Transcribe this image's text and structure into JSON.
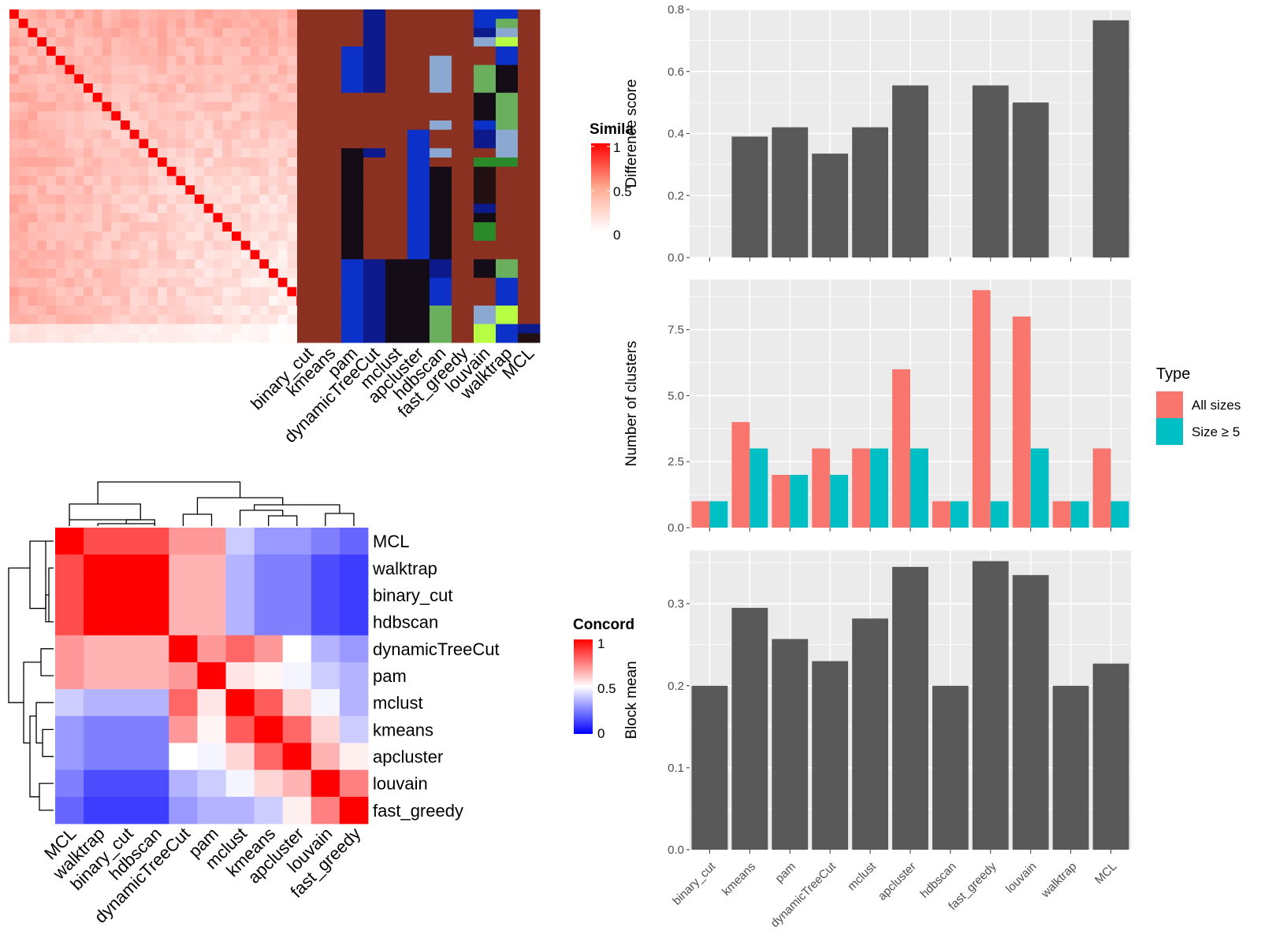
{
  "colors": {
    "panel_bg": "#ebebeb",
    "grid": "#ffffff",
    "bar": "#595959",
    "all_sizes": "#f8766d",
    "size_ge5": "#00bfc4",
    "sim_high": "#ff0000",
    "conc_low": "#0000ff"
  },
  "chart_data": [
    {
      "id": "similarity_heatmap",
      "type": "heatmap",
      "matrix_size": 36,
      "diagonal_value": 1,
      "legend": {
        "title": "Simila",
        "ticks": [
          "1",
          "0.5",
          "0"
        ]
      }
    },
    {
      "id": "cluster_assignment_heatmap",
      "type": "heatmap",
      "columns": [
        "binary_cut",
        "kmeans",
        "pam",
        "dynamicTreeCut",
        "mclust",
        "apcluster",
        "hdbscan",
        "fast_greedy",
        "louvain",
        "walktrap",
        "MCL"
      ],
      "rows": 36,
      "cluster_colors": [
        "#8b3121",
        "#0d1a8c",
        "#0b31c8",
        "#140c16",
        "#8aa8d0",
        "#6aaf5e",
        "#b8ff44",
        "#2a8a2a",
        "#231012"
      ],
      "assignments": [
        [
          0,
          0,
          0,
          1,
          0,
          0,
          0,
          0,
          2,
          2,
          0
        ],
        [
          0,
          0,
          0,
          1,
          0,
          0,
          0,
          0,
          2,
          5,
          0
        ],
        [
          0,
          0,
          0,
          1,
          0,
          0,
          0,
          0,
          1,
          4,
          0
        ],
        [
          0,
          0,
          0,
          1,
          0,
          0,
          0,
          0,
          4,
          6,
          0
        ],
        [
          0,
          0,
          2,
          1,
          0,
          0,
          0,
          0,
          0,
          2,
          0
        ],
        [
          0,
          0,
          2,
          1,
          0,
          0,
          4,
          0,
          0,
          2,
          0
        ],
        [
          0,
          0,
          2,
          1,
          0,
          0,
          4,
          0,
          5,
          3,
          0
        ],
        [
          0,
          0,
          2,
          1,
          0,
          0,
          4,
          0,
          5,
          3,
          0
        ],
        [
          0,
          0,
          2,
          1,
          0,
          0,
          4,
          0,
          5,
          3,
          0
        ],
        [
          0,
          0,
          0,
          0,
          0,
          0,
          0,
          0,
          3,
          5,
          0
        ],
        [
          0,
          0,
          0,
          0,
          0,
          0,
          0,
          0,
          3,
          5,
          0
        ],
        [
          0,
          0,
          0,
          0,
          0,
          0,
          0,
          0,
          3,
          5,
          0
        ],
        [
          0,
          0,
          0,
          0,
          0,
          0,
          4,
          0,
          2,
          5,
          0
        ],
        [
          0,
          0,
          0,
          0,
          0,
          2,
          0,
          0,
          1,
          4,
          0
        ],
        [
          0,
          0,
          0,
          0,
          0,
          2,
          0,
          0,
          1,
          4,
          0
        ],
        [
          0,
          0,
          3,
          1,
          0,
          2,
          4,
          0,
          0,
          4,
          0
        ],
        [
          0,
          0,
          3,
          0,
          0,
          2,
          0,
          0,
          7,
          7,
          0
        ],
        [
          0,
          0,
          3,
          0,
          0,
          2,
          3,
          0,
          8,
          0,
          0
        ],
        [
          0,
          0,
          3,
          0,
          0,
          2,
          3,
          0,
          8,
          0,
          0
        ],
        [
          0,
          0,
          3,
          0,
          0,
          2,
          3,
          0,
          8,
          0,
          0
        ],
        [
          0,
          0,
          3,
          0,
          0,
          2,
          3,
          0,
          8,
          0,
          0
        ],
        [
          0,
          0,
          3,
          0,
          0,
          2,
          3,
          0,
          1,
          0,
          0
        ],
        [
          0,
          0,
          3,
          0,
          0,
          2,
          3,
          0,
          3,
          0,
          0
        ],
        [
          0,
          0,
          3,
          0,
          0,
          2,
          3,
          0,
          7,
          0,
          0
        ],
        [
          0,
          0,
          3,
          0,
          0,
          2,
          3,
          0,
          7,
          0,
          0
        ],
        [
          0,
          0,
          3,
          0,
          0,
          2,
          3,
          0,
          0,
          0,
          0
        ],
        [
          0,
          0,
          3,
          0,
          0,
          2,
          3,
          0,
          0,
          0,
          0
        ],
        [
          0,
          0,
          2,
          1,
          3,
          3,
          1,
          0,
          3,
          5,
          0
        ],
        [
          0,
          0,
          2,
          1,
          3,
          3,
          1,
          0,
          3,
          5,
          0
        ],
        [
          0,
          0,
          2,
          1,
          3,
          3,
          2,
          0,
          0,
          2,
          0
        ],
        [
          0,
          0,
          2,
          1,
          3,
          3,
          2,
          0,
          0,
          2,
          0
        ],
        [
          0,
          0,
          2,
          1,
          3,
          3,
          2,
          0,
          0,
          2,
          0
        ],
        [
          0,
          0,
          2,
          1,
          3,
          3,
          5,
          0,
          4,
          6,
          0
        ],
        [
          0,
          0,
          2,
          1,
          3,
          3,
          5,
          0,
          4,
          6,
          0
        ],
        [
          0,
          0,
          2,
          1,
          3,
          3,
          5,
          0,
          6,
          2,
          1
        ],
        [
          0,
          0,
          2,
          1,
          3,
          3,
          5,
          0,
          6,
          2,
          8
        ]
      ]
    },
    {
      "id": "concordance_heatmap",
      "type": "heatmap",
      "labels": [
        "MCL",
        "walktrap",
        "binary_cut",
        "hdbscan",
        "dynamicTreeCut",
        "pam",
        "mclust",
        "kmeans",
        "apcluster",
        "louvain",
        "fast_greedy"
      ],
      "values": [
        [
          1,
          0.85,
          0.85,
          0.85,
          0.7,
          0.7,
          0.4,
          0.3,
          0.3,
          0.25,
          0.2
        ],
        [
          0.85,
          1,
          1,
          1,
          0.65,
          0.65,
          0.35,
          0.25,
          0.25,
          0.15,
          0.12
        ],
        [
          0.85,
          1,
          1,
          1,
          0.65,
          0.65,
          0.35,
          0.25,
          0.25,
          0.15,
          0.12
        ],
        [
          0.85,
          1,
          1,
          1,
          0.65,
          0.65,
          0.35,
          0.25,
          0.25,
          0.15,
          0.12
        ],
        [
          0.7,
          0.65,
          0.65,
          0.65,
          1,
          0.7,
          0.8,
          0.7,
          0.5,
          0.35,
          0.3
        ],
        [
          0.7,
          0.65,
          0.65,
          0.65,
          0.7,
          1,
          0.55,
          0.52,
          0.48,
          0.4,
          0.35
        ],
        [
          0.4,
          0.35,
          0.35,
          0.35,
          0.8,
          0.55,
          1,
          0.82,
          0.58,
          0.48,
          0.35
        ],
        [
          0.3,
          0.25,
          0.25,
          0.25,
          0.7,
          0.52,
          0.82,
          1,
          0.8,
          0.58,
          0.4
        ],
        [
          0.3,
          0.25,
          0.25,
          0.25,
          0.5,
          0.48,
          0.58,
          0.8,
          1,
          0.65,
          0.53
        ],
        [
          0.25,
          0.15,
          0.15,
          0.15,
          0.35,
          0.4,
          0.48,
          0.58,
          0.65,
          1,
          0.75
        ],
        [
          0.2,
          0.12,
          0.12,
          0.12,
          0.3,
          0.35,
          0.35,
          0.4,
          0.53,
          0.75,
          1
        ]
      ],
      "legend": {
        "title": "Concord",
        "ticks": [
          "1",
          "0.5",
          "0"
        ]
      }
    },
    {
      "id": "difference_score",
      "type": "bar",
      "categories": [
        "binary_cut",
        "kmeans",
        "pam",
        "dynamicTreeCut",
        "mclust",
        "apcluster",
        "hdbscan",
        "fast_greedy",
        "louvain",
        "walktrap",
        "MCL"
      ],
      "values": [
        0,
        0.39,
        0.42,
        0.335,
        0.42,
        0.555,
        0,
        0.555,
        0.5,
        0,
        0.765
      ],
      "ylabel": "Difference score",
      "ylim": [
        0,
        0.8
      ],
      "yticks": [
        "0.0",
        "0.2",
        "0.4",
        "0.6",
        "0.8"
      ]
    },
    {
      "id": "number_of_clusters",
      "type": "bar",
      "categories": [
        "binary_cut",
        "kmeans",
        "pam",
        "dynamicTreeCut",
        "mclust",
        "apcluster",
        "hdbscan",
        "fast_greedy",
        "louvain",
        "walktrap",
        "MCL"
      ],
      "series": [
        {
          "name": "All sizes",
          "values": [
            1,
            4,
            2,
            3,
            3,
            6,
            1,
            9,
            8,
            1,
            3
          ]
        },
        {
          "name": "Size ≥ 5",
          "values": [
            1,
            3,
            2,
            2,
            3,
            3,
            1,
            1,
            3,
            1,
            1
          ]
        }
      ],
      "ylabel": "Number of clusters",
      "ylim": [
        0,
        9.4
      ],
      "yticks": [
        "0.0",
        "2.5",
        "5.0",
        "7.5"
      ],
      "legend": {
        "title": "Type",
        "position": "right"
      }
    },
    {
      "id": "block_mean",
      "type": "bar",
      "categories": [
        "binary_cut",
        "kmeans",
        "pam",
        "dynamicTreeCut",
        "mclust",
        "apcluster",
        "hdbscan",
        "fast_greedy",
        "louvain",
        "walktrap",
        "MCL"
      ],
      "values": [
        0.2,
        0.295,
        0.257,
        0.23,
        0.282,
        0.345,
        0.2,
        0.352,
        0.335,
        0.2,
        0.227
      ],
      "ylabel": "Block mean",
      "ylim": [
        0,
        0.365
      ],
      "yticks": [
        "0.0",
        "0.1",
        "0.2",
        "0.3"
      ]
    }
  ]
}
